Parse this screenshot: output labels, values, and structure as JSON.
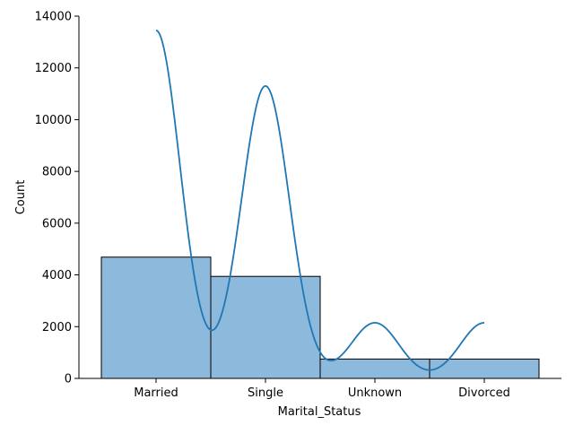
{
  "chart_data": {
    "type": "bar",
    "subtype": "histogram-with-kde",
    "categories": [
      "Married",
      "Single",
      "Unknown",
      "Divorced"
    ],
    "values": [
      4687,
      3943,
      749,
      748
    ],
    "kde_peaks": [
      13450,
      11300,
      2150,
      2150
    ],
    "xlabel": "Marital_Status",
    "ylabel": "Count",
    "ylim": [
      0,
      14000
    ],
    "yticks": [
      0,
      2000,
      4000,
      6000,
      8000,
      10000,
      12000,
      14000
    ],
    "ytick_labels": [
      "0",
      "2000",
      "4000",
      "6000",
      "8000",
      "10000",
      "12000",
      "14000"
    ],
    "grid": false,
    "legend": "none",
    "colors": {
      "bar_fill": "#8db9dc",
      "bar_edge": "#000000",
      "kde_line": "#1f77b4",
      "axis": "#000000"
    }
  }
}
